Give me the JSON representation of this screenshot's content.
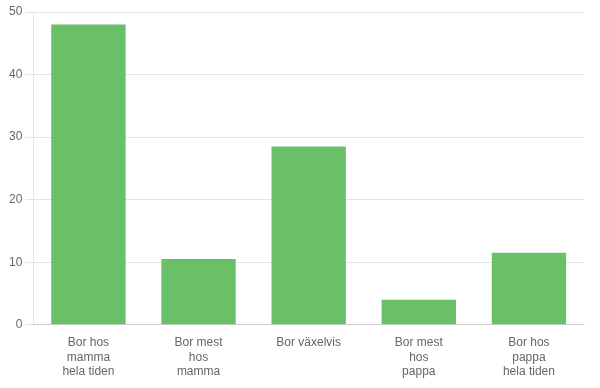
{
  "chart_data": {
    "type": "bar",
    "categories": [
      "Bor hos\nmamma\nhela tiden",
      "Bor mest\nhos\nmamma",
      "Bor växelvis",
      "Bor mest\nhos\npappa",
      "Bor hos\npappa\nhela tiden"
    ],
    "values": [
      48,
      10.5,
      28.5,
      4,
      11.5
    ],
    "color": "#6abf69",
    "ylim": [
      0,
      50
    ],
    "yticks": [
      0,
      10,
      20,
      30,
      40,
      50
    ],
    "grid": true
  }
}
